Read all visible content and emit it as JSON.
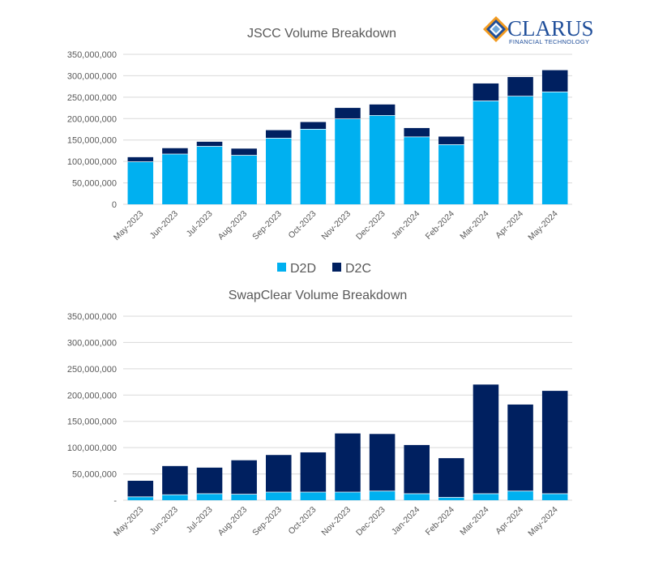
{
  "logo": {
    "name": "CLARUS",
    "tagline": "FINANCIAL TECHNOLOGY"
  },
  "colors": {
    "d2d": "#00b0f0",
    "d2c": "#002060",
    "grid": "#d9d9d9",
    "axis_text": "#595959",
    "title_text": "#595959",
    "logo_blue": "#1f4e9a",
    "logo_orange": "#f29a1f"
  },
  "legend": {
    "items": [
      {
        "label": "D2D",
        "color": "#00b0f0"
      },
      {
        "label": "D2C",
        "color": "#002060"
      }
    ]
  },
  "chart_data": [
    {
      "type": "bar",
      "stacked": true,
      "title": "JSCC Volume Breakdown",
      "categories": [
        "May-2023",
        "Jun-2023",
        "Jul-2023",
        "Aug-2023",
        "Sep-2023",
        "Oct-2023",
        "Nov-2023",
        "Dec-2023",
        "Jan-2024",
        "Feb-2024",
        "Mar-2024",
        "Apr-2024",
        "May-2024"
      ],
      "series": [
        {
          "name": "D2D",
          "values": [
            100000000,
            118000000,
            136000000,
            115000000,
            155000000,
            176000000,
            200000000,
            208000000,
            158000000,
            140000000,
            242000000,
            253000000,
            263000000
          ]
        },
        {
          "name": "D2C",
          "values": [
            10000000,
            13000000,
            10000000,
            15000000,
            18000000,
            16000000,
            25000000,
            25000000,
            20000000,
            18000000,
            40000000,
            44000000,
            50000000
          ]
        }
      ],
      "ylim": [
        0,
        350000000
      ],
      "yticks": [
        0,
        50000000,
        100000000,
        150000000,
        200000000,
        250000000,
        300000000,
        350000000
      ],
      "ytick_labels": [
        "0",
        "50,000,000",
        "100,000,000",
        "150,000,000",
        "200,000,000",
        "250,000,000",
        "300,000,000",
        "350,000,000"
      ],
      "grid": true,
      "legend": "bottom"
    },
    {
      "type": "bar",
      "stacked": true,
      "title": "SwapClear Volume Breakdown",
      "categories": [
        "May-2023",
        "Jun-2023",
        "Jul-2023",
        "Aug-2023",
        "Sep-2023",
        "Oct-2023",
        "Nov-2023",
        "Dec-2023",
        "Jan-2024",
        "Feb-2024",
        "Mar-2024",
        "Apr-2024",
        "May-2024"
      ],
      "series": [
        {
          "name": "D2D",
          "values": [
            7000000,
            11000000,
            13000000,
            12000000,
            16000000,
            16000000,
            16000000,
            18000000,
            13000000,
            6000000,
            13000000,
            18000000,
            13000000
          ]
        },
        {
          "name": "D2C",
          "values": [
            30000000,
            54000000,
            49000000,
            64000000,
            70000000,
            75000000,
            111000000,
            108000000,
            92000000,
            74000000,
            207000000,
            164000000,
            195000000
          ]
        }
      ],
      "ylim": [
        0,
        350000000
      ],
      "yticks": [
        0,
        50000000,
        100000000,
        150000000,
        200000000,
        250000000,
        300000000,
        350000000
      ],
      "ytick_labels": [
        "-",
        "50,000,000",
        "100,000,000",
        "150,000,000",
        "200,000,000",
        "250,000,000",
        "300,000,000",
        "350,000,000"
      ],
      "grid": true,
      "legend": "none"
    }
  ]
}
